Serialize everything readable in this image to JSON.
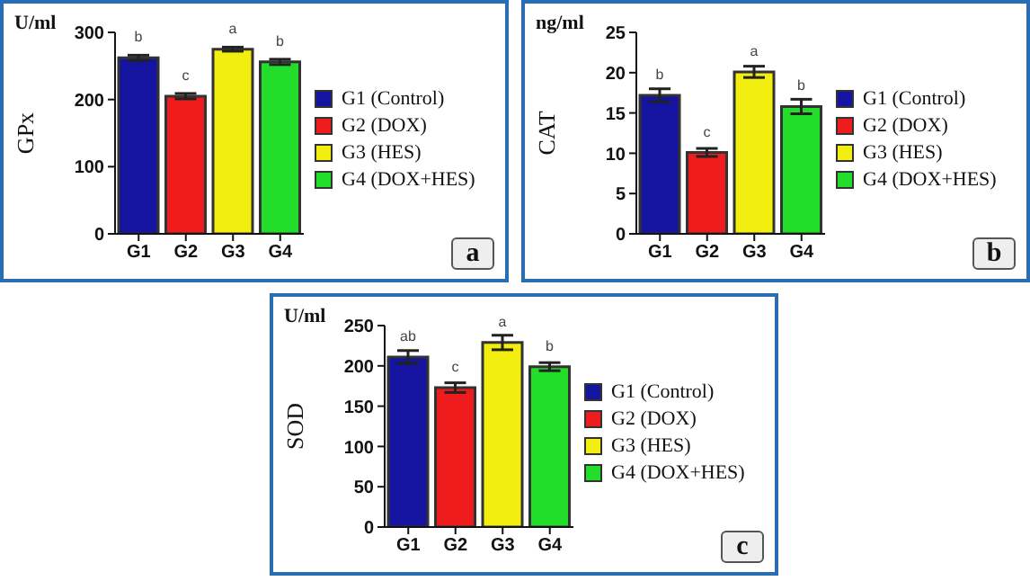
{
  "chart_data": [
    {
      "type": "bar",
      "ylabel": "GPx",
      "categories": [
        "G1",
        "G2",
        "G3",
        "G4"
      ],
      "stacked": true,
      "legend": "right",
      "ylim": [
        0,
        300
      ],
      "yticks": [
        0,
        100,
        200,
        300
      ],
      "annotations": [
        "U/ml",
        "a"
      ],
      "series": [
        {
          "name": "G1 (Control)",
          "color": "#1414a0",
          "values": [
            262,
            null,
            null,
            null
          ],
          "errors": [
            4,
            null,
            null,
            null
          ],
          "value_labels": [
            "b",
            null,
            null,
            null
          ]
        },
        {
          "name": "G2 (DOX)",
          "color": "#ee1c1c",
          "values": [
            null,
            205,
            null,
            null
          ],
          "errors": [
            null,
            4,
            null,
            null
          ],
          "value_labels": [
            null,
            "c",
            null,
            null
          ]
        },
        {
          "name": "G3 (HES)",
          "color": "#f2ee10",
          "values": [
            null,
            null,
            275,
            null
          ],
          "errors": [
            null,
            null,
            3,
            null
          ],
          "value_labels": [
            null,
            null,
            "a",
            null
          ]
        },
        {
          "name": "G4 (DOX+HES)",
          "color": "#22dd2a",
          "values": [
            null,
            null,
            null,
            256
          ],
          "errors": [
            null,
            null,
            null,
            4
          ],
          "value_labels": [
            null,
            null,
            null,
            "b"
          ]
        }
      ]
    },
    {
      "type": "bar",
      "ylabel": "CAT",
      "categories": [
        "G1",
        "G2",
        "G3",
        "G4"
      ],
      "stacked": true,
      "legend": "right",
      "ylim": [
        0,
        25
      ],
      "yticks": [
        0,
        5,
        10,
        15,
        20,
        25
      ],
      "annotations": [
        "ng/ml",
        "b"
      ],
      "series": [
        {
          "name": "G1 (Control)",
          "color": "#1414a0",
          "values": [
            17.2,
            null,
            null,
            null
          ],
          "errors": [
            0.8,
            null,
            null,
            null
          ],
          "value_labels": [
            "b",
            null,
            null,
            null
          ]
        },
        {
          "name": "G2 (DOX)",
          "color": "#ee1c1c",
          "values": [
            null,
            10.1,
            null,
            null
          ],
          "errors": [
            null,
            0.5,
            null,
            null
          ],
          "value_labels": [
            null,
            "c",
            null,
            null
          ]
        },
        {
          "name": "G3 (HES)",
          "color": "#f2ee10",
          "values": [
            null,
            null,
            20.1,
            null
          ],
          "errors": [
            null,
            null,
            0.7,
            null
          ],
          "value_labels": [
            null,
            null,
            "a",
            null
          ]
        },
        {
          "name": "G4 (DOX+HES)",
          "color": "#22dd2a",
          "values": [
            null,
            null,
            null,
            15.8
          ],
          "errors": [
            null,
            null,
            null,
            0.9
          ],
          "value_labels": [
            null,
            null,
            null,
            "b"
          ]
        }
      ]
    },
    {
      "type": "bar",
      "ylabel": "SOD",
      "categories": [
        "G1",
        "G2",
        "G3",
        "G4"
      ],
      "stacked": true,
      "legend": "right",
      "ylim": [
        0,
        250
      ],
      "yticks": [
        0,
        50,
        100,
        150,
        200,
        250
      ],
      "annotations": [
        "U/ml",
        "c"
      ],
      "series": [
        {
          "name": "G1 (Control)",
          "color": "#1414a0",
          "values": [
            211,
            null,
            null,
            null
          ],
          "errors": [
            8,
            null,
            null,
            null
          ],
          "value_labels": [
            "ab",
            null,
            null,
            null
          ]
        },
        {
          "name": "G2 (DOX)",
          "color": "#ee1c1c",
          "values": [
            null,
            173,
            null,
            null
          ],
          "errors": [
            null,
            6,
            null,
            null
          ],
          "value_labels": [
            null,
            "c",
            null,
            null
          ]
        },
        {
          "name": "G3 (HES)",
          "color": "#f2ee10",
          "values": [
            null,
            null,
            229,
            null
          ],
          "errors": [
            null,
            null,
            9,
            null
          ],
          "value_labels": [
            null,
            null,
            "a",
            null
          ]
        },
        {
          "name": "G4 (DOX+HES)",
          "color": "#22dd2a",
          "values": [
            null,
            null,
            null,
            199
          ],
          "errors": [
            null,
            null,
            null,
            5
          ],
          "value_labels": [
            null,
            null,
            null,
            "b"
          ]
        }
      ]
    }
  ]
}
